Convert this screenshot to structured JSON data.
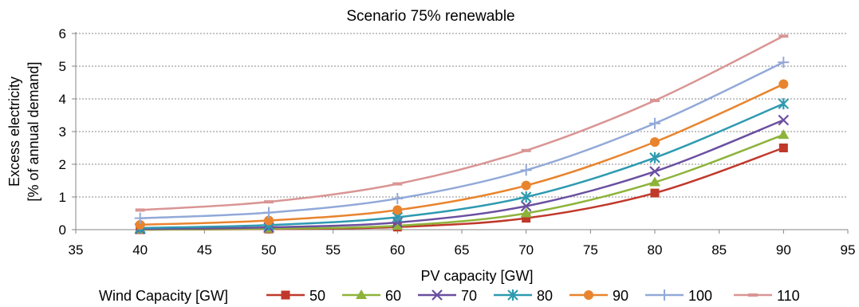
{
  "chart_data": {
    "type": "line",
    "title": "Scenario 75% renewable",
    "xlabel": "PV capacity [GW]",
    "ylabel": [
      "Excess electricity",
      "[% of annual demand]"
    ],
    "xlim": [
      35,
      95
    ],
    "ylim": [
      0,
      6
    ],
    "xticks": [
      "35",
      "40",
      "45",
      "50",
      "55",
      "60",
      "65",
      "70",
      "75",
      "80",
      "85",
      "90",
      "95"
    ],
    "yticks": [
      "0",
      "1",
      "2",
      "3",
      "4",
      "5",
      "6"
    ],
    "grid": "horizontal dotted",
    "legend": {
      "title": "Wind Capacity [GW]",
      "position": "bottom"
    },
    "x": [
      40,
      50,
      60,
      70,
      80,
      90
    ],
    "series": [
      {
        "name": "50",
        "color": "#C0392B",
        "marker": "square",
        "values": [
          0.0,
          0.02,
          0.08,
          0.35,
          1.12,
          2.5
        ]
      },
      {
        "name": "60",
        "color": "#8DB33A",
        "marker": "triangle",
        "values": [
          0.0,
          0.03,
          0.12,
          0.5,
          1.45,
          2.9
        ]
      },
      {
        "name": "70",
        "color": "#6A4FA0",
        "marker": "x",
        "values": [
          0.02,
          0.07,
          0.22,
          0.72,
          1.78,
          3.35
        ]
      },
      {
        "name": "80",
        "color": "#2E9AB0",
        "marker": "star",
        "values": [
          0.05,
          0.14,
          0.38,
          1.0,
          2.2,
          3.85
        ]
      },
      {
        "name": "90",
        "color": "#E8842E",
        "marker": "circle",
        "values": [
          0.15,
          0.28,
          0.6,
          1.35,
          2.68,
          4.45
        ]
      },
      {
        "name": "100",
        "color": "#92A9D8",
        "marker": "plus",
        "values": [
          0.35,
          0.52,
          0.95,
          1.82,
          3.25,
          5.12
        ]
      },
      {
        "name": "110",
        "color": "#D99594",
        "marker": "dash",
        "values": [
          0.6,
          0.85,
          1.4,
          2.42,
          3.95,
          5.92
        ]
      }
    ]
  }
}
